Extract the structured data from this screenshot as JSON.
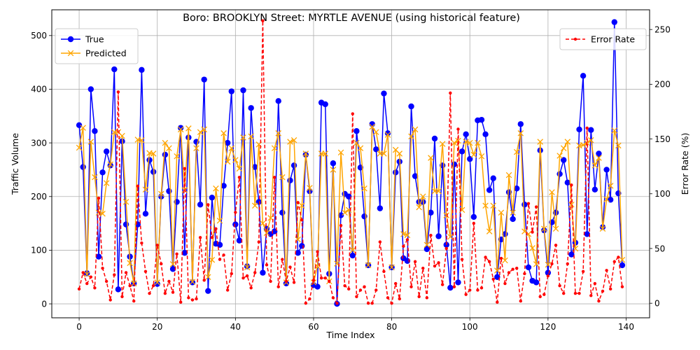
{
  "chart_data": {
    "type": "line",
    "title": "Boro: BROOKLYN Street: MYRTLE AVENUE (using historical feature)",
    "xlabel": "Time Index",
    "ylabel": "Traffic Volume",
    "y2label": "Error Rate (%)",
    "xlim": [
      -7,
      146
    ],
    "ylim": [
      -26,
      548
    ],
    "y2lim": [
      -13.3,
      268
    ],
    "xticks": [
      "0",
      "20",
      "40",
      "60",
      "80",
      "100",
      "120",
      "140"
    ],
    "yticks": [
      "0",
      "100",
      "200",
      "300",
      "400",
      "500"
    ],
    "y2ticks": [
      "0",
      "50",
      "100",
      "150",
      "200",
      "250"
    ],
    "grid": true,
    "legend_left": "upper-left",
    "legend_right": "upper-right",
    "series": [
      {
        "name": "True",
        "axis": "left",
        "color": "#0000ff",
        "values": [
          333,
          255,
          57,
          400,
          322,
          88,
          245,
          284,
          258,
          437,
          27,
          303,
          148,
          88,
          38,
          148,
          436,
          168,
          268,
          246,
          37,
          200,
          278,
          210,
          65,
          190,
          328,
          95,
          310,
          40,
          302,
          185,
          418,
          24,
          198,
          112,
          110,
          220,
          300,
          396,
          148,
          118,
          398,
          70,
          365,
          255,
          190,
          58,
          140,
          130,
          135,
          378,
          170,
          38,
          230,
          258,
          95,
          108,
          278,
          210,
          35,
          32,
          375,
          372,
          56,
          262,
          0,
          165,
          205,
          200,
          90,
          322,
          254,
          163,
          72,
          335,
          288,
          178,
          392,
          318,
          68,
          245,
          265,
          85,
          80,
          368,
          238,
          190,
          190,
          102,
          170,
          308,
          126,
          258,
          110,
          30,
          260,
          40,
          284,
          316,
          270,
          162,
          342,
          343,
          316,
          212,
          234,
          50,
          120,
          130,
          208,
          158,
          215,
          335,
          185,
          68,
          43,
          40,
          286,
          137,
          58,
          152,
          170,
          242,
          268,
          226,
          92,
          114,
          325,
          425,
          130,
          324,
          213,
          280,
          143,
          250,
          194,
          525,
          206,
          72
        ]
      },
      {
        "name": "Predicted",
        "axis": "left",
        "color": "#ffa500",
        "values": [
          291,
          328,
          55,
          302,
          236,
          170,
          168,
          225,
          260,
          320,
          320,
          313,
          190,
          76,
          38,
          306,
          305,
          213,
          281,
          280,
          40,
          205,
          300,
          290,
          74,
          275,
          325,
          212,
          327,
          41,
          290,
          320,
          325,
          50,
          82,
          215,
          155,
          318,
          265,
          290,
          268,
          252,
          310,
          68,
          312,
          183,
          297,
          150,
          132,
          160,
          290,
          318,
          236,
          40,
          302,
          305,
          120,
          183,
          280,
          216,
          40,
          70,
          280,
          280,
          42,
          250,
          75,
          282,
          170,
          175,
          100,
          300,
          290,
          215,
          72,
          330,
          320,
          280,
          280,
          315,
          68,
          287,
          280,
          130,
          128,
          312,
          325,
          180,
          200,
          110,
          272,
          210,
          210,
          298,
          165,
          125,
          300,
          304,
          175,
          302,
          300,
          278,
          300,
          275,
          183,
          135,
          183,
          62,
          170,
          81,
          240,
          170,
          283,
          318,
          135,
          130,
          104,
          74,
          302,
          140,
          73,
          208,
          140,
          276,
          290,
          302,
          185,
          103,
          295,
          296,
          300,
          305,
          258,
          272,
          140,
          195,
          220,
          323,
          295,
          82
        ]
      },
      {
        "name": "Error Rate",
        "axis": "right",
        "color": "#ff0000",
        "values": [
          13,
          28,
          18,
          24,
          14,
          96,
          32,
          20,
          3,
          26,
          193,
          6,
          28,
          16,
          2,
          107,
          55,
          29,
          9,
          16,
          53,
          36,
          9,
          20,
          10,
          45,
          1,
          123,
          5,
          3,
          4,
          60,
          21,
          90,
          60,
          68,
          40,
          44,
          12,
          27,
          83,
          115,
          23,
          25,
          14,
          28,
          56,
          258,
          35,
          20,
          115,
          15,
          40,
          20,
          33,
          19,
          92,
          76,
          0,
          4,
          21,
          47,
          23,
          23,
          20,
          5,
          0,
          71,
          16,
          13,
          173,
          6,
          12,
          15,
          0,
          0,
          12,
          56,
          29,
          5,
          0,
          18,
          4,
          52,
          58,
          15,
          38,
          6,
          32,
          5,
          62,
          34,
          37,
          17,
          50,
          192,
          15,
          159,
          40,
          8,
          12,
          73,
          12,
          14,
          42,
          38,
          22,
          1,
          41,
          18,
          28,
          31,
          32,
          2,
          27,
          91,
          65,
          88,
          6,
          8,
          25,
          36,
          53,
          16,
          9,
          36,
          108,
          9,
          9,
          29,
          160,
          7,
          18,
          2,
          11,
          30,
          13,
          38,
          42,
          15
        ]
      }
    ]
  }
}
